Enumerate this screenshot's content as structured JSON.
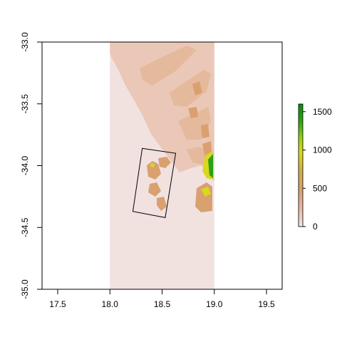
{
  "chart_data": {
    "type": "heatmap",
    "description": "Elevation raster of the Cape Peninsula region with a rotated study-area rectangle",
    "xlim": [
      17.35,
      19.65
    ],
    "ylim": [
      -35.0,
      -33.0
    ],
    "x_ticks": [
      17.5,
      18.0,
      18.5,
      19.0,
      19.5
    ],
    "x_tick_labels": [
      "17.5",
      "18.0",
      "18.5",
      "19.0",
      "19.5"
    ],
    "y_ticks": [
      -33.0,
      -33.5,
      -34.0,
      -34.5,
      -35.0
    ],
    "y_tick_labels": [
      "-33.0",
      "-33.5",
      "-34.0",
      "-34.5",
      "-35.0"
    ],
    "raster_extent": {
      "xmin": 18.0,
      "xmax": 19.0,
      "ymin": -35.0,
      "ymax": -33.0
    },
    "study_area_polygon": [
      [
        18.31,
        -33.86
      ],
      [
        18.63,
        -33.9
      ],
      [
        18.53,
        -34.42
      ],
      [
        18.22,
        -34.37
      ]
    ],
    "legend": {
      "min": 0,
      "max": 1600,
      "ticks": [
        0,
        500,
        1000,
        1500
      ],
      "tick_labels": [
        "0",
        "500",
        "1000",
        "1500"
      ],
      "colors": [
        "#f2e5e5",
        "#e8b8a0",
        "#d8a070",
        "#d2b046",
        "#dcd81c",
        "#9bd312",
        "#2ea814",
        "#0b8a0b"
      ]
    },
    "colors": {
      "nodata": "#f1e2e0",
      "low": "#ebc7b7",
      "mid": "#d9a070",
      "high": "#d3a24c",
      "yellow": "#d9d81b",
      "green": "#2aa213"
    },
    "grid": false
  }
}
